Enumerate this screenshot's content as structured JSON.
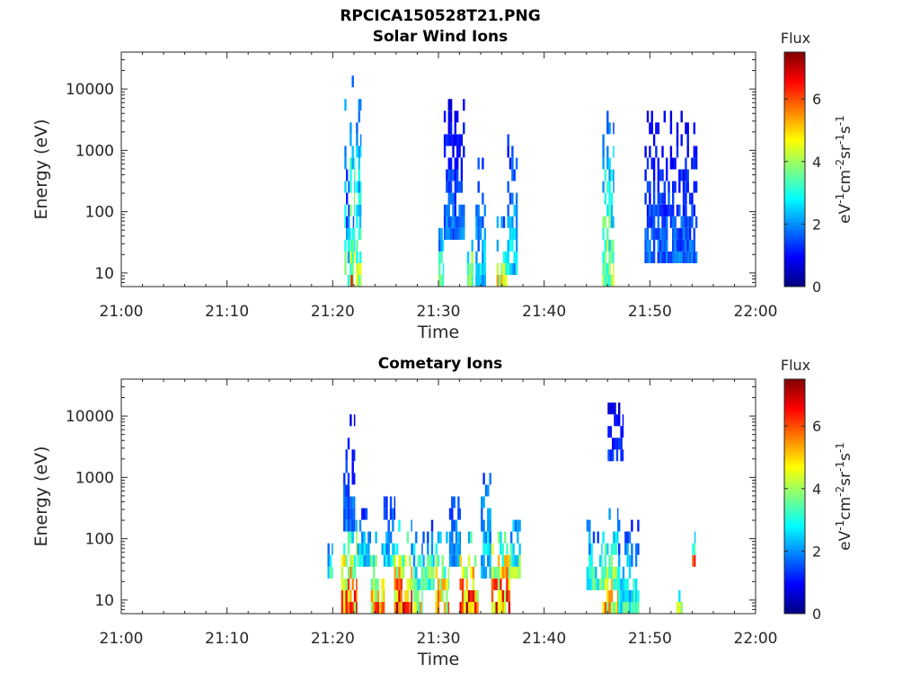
{
  "figure": {
    "filename": "RPCICA150528T21.PNG"
  },
  "colormap": {
    "name": "jet",
    "stops": [
      "#00007f",
      "#0000ff",
      "#007fff",
      "#00ffff",
      "#7fff7f",
      "#ffff00",
      "#ff7f00",
      "#ff0000",
      "#7f0000"
    ]
  },
  "chart_data": [
    {
      "type": "heatmap",
      "title": "Solar Wind Ions",
      "xlabel": "Time",
      "ylabel": "Energy (eV)",
      "xlim": [
        "21:00",
        "22:00"
      ],
      "x_ticks": [
        "21:00",
        "21:10",
        "21:20",
        "21:30",
        "21:40",
        "21:50",
        "22:00"
      ],
      "y_scale": "log",
      "ylim": [
        6,
        40000
      ],
      "y_ticks": [
        10,
        100,
        1000,
        10000
      ],
      "colorbar": {
        "title": "Flux",
        "label": "eV-1cm-2sr-1s-1",
        "range": [
          0,
          7.5
        ],
        "ticks": [
          0,
          2,
          4,
          6
        ]
      },
      "grid": false,
      "bursts": [
        {
          "t_start": 21.1,
          "t_end": 21.3,
          "e_low": 6,
          "e_high": 10000,
          "peak": 4.5
        },
        {
          "t_start": 21.1,
          "t_end": 21.25,
          "e_low": 6,
          "e_high": 40,
          "peak": 5.0
        },
        {
          "t_start": 21.25,
          "t_end": 21.6,
          "e_low": 40,
          "e_high": 1000,
          "peak": 2.0
        },
        {
          "t_start": 21.4,
          "t_end": 21.6,
          "e_low": 6,
          "e_high": 80,
          "peak": 4.0
        },
        {
          "t_start": 21.6,
          "t_end": 21.8,
          "e_low": 10,
          "e_high": 20000,
          "peak": 4.5
        },
        {
          "t_start": 21.7,
          "t_end": 21.8,
          "e_low": 10,
          "e_high": 60,
          "peak": 5.5
        },
        {
          "t_start": 21.8,
          "t_end": 22.1,
          "e_low": 6,
          "e_high": 15000,
          "peak": 4.8
        },
        {
          "t_start": 21.7,
          "t_end": 22.0,
          "e_low": 6,
          "e_high": 60,
          "peak": 6.0
        },
        {
          "t_start": 22.2,
          "t_end": 22.6,
          "e_low": 6,
          "e_high": 10000,
          "peak": 4.5
        },
        {
          "t_start": 22.5,
          "t_end": 22.7,
          "e_low": 6,
          "e_high": 60,
          "peak": 5.0
        },
        {
          "t_start": 30.0,
          "t_end": 30.5,
          "e_low": 6,
          "e_high": 60,
          "peak": 4.0
        },
        {
          "t_start": 30.5,
          "t_end": 32.5,
          "e_low": 50,
          "e_high": 5000,
          "peak": 2.0
        },
        {
          "t_start": 32.7,
          "t_end": 33.3,
          "e_low": 6,
          "e_high": 60,
          "peak": 5.0
        },
        {
          "t_start": 33.5,
          "t_end": 34.5,
          "e_low": 6,
          "e_high": 1000,
          "peak": 3.0
        },
        {
          "t_start": 35.5,
          "t_end": 36.5,
          "e_low": 6,
          "e_high": 60,
          "peak": 5.0
        },
        {
          "t_start": 36.5,
          "t_end": 37.5,
          "e_low": 10,
          "e_high": 2000,
          "peak": 3.0
        },
        {
          "t_start": 45.5,
          "t_end": 46.6,
          "e_low": 6,
          "e_high": 4000,
          "peak": 4.5
        },
        {
          "t_start": 49.5,
          "t_end": 54.5,
          "e_low": 15,
          "e_high": 4000,
          "peak": 2.0
        }
      ]
    },
    {
      "type": "heatmap",
      "title": "Cometary Ions",
      "xlabel": "Time",
      "ylabel": "Energy (eV)",
      "xlim": [
        "21:00",
        "22:00"
      ],
      "x_ticks": [
        "21:00",
        "21:10",
        "21:20",
        "21:30",
        "21:40",
        "21:50",
        "22:00"
      ],
      "y_scale": "log",
      "ylim": [
        6,
        40000
      ],
      "y_ticks": [
        10,
        100,
        1000,
        10000
      ],
      "colorbar": {
        "title": "Flux",
        "label": "eV-1cm-2sr-1s-1",
        "range": [
          0,
          7.5
        ],
        "ticks": [
          0,
          2,
          4,
          6
        ]
      },
      "grid": false,
      "bursts": [
        {
          "t_start": 19.5,
          "t_end": 20.0,
          "e_low": 30,
          "e_high": 100,
          "peak": 3.0
        },
        {
          "t_start": 20.8,
          "t_end": 22.3,
          "e_low": 6,
          "e_high": 300,
          "peak": 6.5
        },
        {
          "t_start": 21.0,
          "t_end": 22.0,
          "e_low": 200,
          "e_high": 10000,
          "peak": 2.0
        },
        {
          "t_start": 22.3,
          "t_end": 23.5,
          "e_low": 40,
          "e_high": 300,
          "peak": 3.0
        },
        {
          "t_start": 23.6,
          "t_end": 24.8,
          "e_low": 6,
          "e_high": 100,
          "peak": 6.0
        },
        {
          "t_start": 24.8,
          "t_end": 25.8,
          "e_low": 40,
          "e_high": 400,
          "peak": 3.0
        },
        {
          "t_start": 25.8,
          "t_end": 27.4,
          "e_low": 6,
          "e_high": 150,
          "peak": 7.0
        },
        {
          "t_start": 27.4,
          "t_end": 28.5,
          "e_low": 6,
          "e_high": 100,
          "peak": 5.0
        },
        {
          "t_start": 28.5,
          "t_end": 29.5,
          "e_low": 20,
          "e_high": 150,
          "peak": 4.0
        },
        {
          "t_start": 29.7,
          "t_end": 31.0,
          "e_low": 6,
          "e_high": 200,
          "peak": 6.0
        },
        {
          "t_start": 31.0,
          "t_end": 32.0,
          "e_low": 50,
          "e_high": 1000,
          "peak": 2.5
        },
        {
          "t_start": 32.0,
          "t_end": 34.0,
          "e_low": 6,
          "e_high": 150,
          "peak": 7.0
        },
        {
          "t_start": 34.0,
          "t_end": 35.0,
          "e_low": 30,
          "e_high": 3000,
          "peak": 3.0
        },
        {
          "t_start": 35.0,
          "t_end": 36.8,
          "e_low": 6,
          "e_high": 200,
          "peak": 7.0
        },
        {
          "t_start": 36.8,
          "t_end": 37.8,
          "e_low": 30,
          "e_high": 300,
          "peak": 4.0
        },
        {
          "t_start": 44.0,
          "t_end": 45.5,
          "e_low": 20,
          "e_high": 200,
          "peak": 3.5
        },
        {
          "t_start": 45.5,
          "t_end": 47.0,
          "e_low": 6,
          "e_high": 300,
          "peak": 5.5
        },
        {
          "t_start": 47.0,
          "t_end": 49.0,
          "e_low": 6,
          "e_high": 200,
          "peak": 3.5
        },
        {
          "t_start": 46.0,
          "t_end": 47.5,
          "e_low": 2000,
          "e_high": 15000,
          "peak": 1.5
        },
        {
          "t_start": 52.5,
          "t_end": 53.3,
          "e_low": 6,
          "e_high": 12,
          "peak": 5.0
        },
        {
          "t_start": 54.0,
          "t_end": 54.3,
          "e_low": 50,
          "e_high": 90,
          "peak": 5.0
        }
      ]
    }
  ]
}
